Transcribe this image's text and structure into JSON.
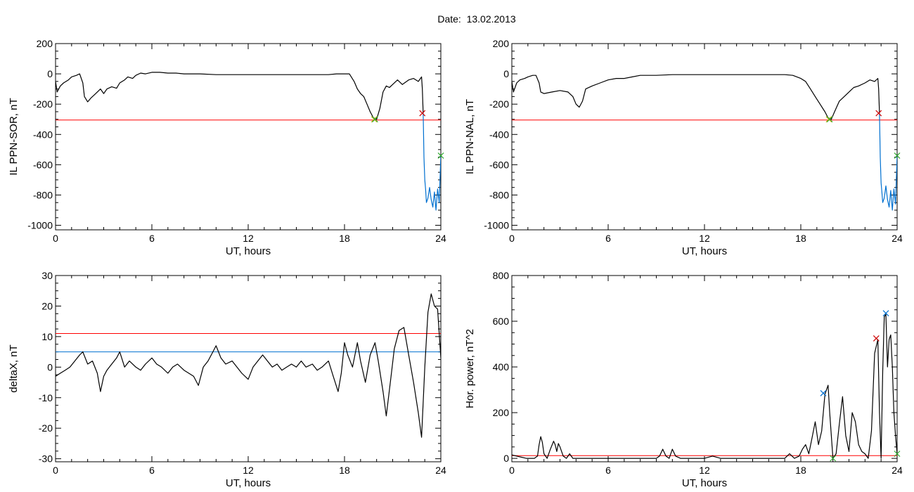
{
  "page_title": "Date:  13.02.2013",
  "chart_data": [
    {
      "type": "line",
      "xlabel": "UT, hours",
      "ylabel": "IL PPN-SOR, nT",
      "xlim": [
        0,
        24
      ],
      "ylim": [
        -1030,
        200
      ],
      "xticks": [
        "0",
        "6",
        "12",
        "18",
        "24"
      ],
      "yticks": [
        "-1000",
        "-800",
        "-600",
        "-400",
        "-200",
        "0",
        "200"
      ],
      "threshold_lines": [
        {
          "y": -305,
          "color": "#ff0000"
        }
      ],
      "series": [
        {
          "color": "#000000",
          "x": [
            0,
            0.1,
            0.3,
            0.5,
            0.8,
            1.0,
            1.3,
            1.5,
            1.7,
            1.8,
            2.0,
            2.2,
            2.4,
            2.6,
            2.8,
            3.0,
            3.2,
            3.5,
            3.8,
            4.0,
            4.3,
            4.5,
            4.8,
            5.0,
            5.3,
            5.6,
            6.0,
            6.5,
            7.0,
            7.5,
            8.0,
            9.0,
            10.0,
            11.0,
            12.0,
            13.0,
            14.0,
            15.0,
            16.0,
            17.0,
            17.5,
            18.0,
            18.3,
            18.6,
            18.8,
            19.0,
            19.2,
            19.4,
            19.6,
            19.8,
            20.0,
            20.2,
            20.4,
            20.6,
            20.8,
            21.0,
            21.3,
            21.6,
            22.0,
            22.3,
            22.6,
            22.8,
            22.85,
            22.9
          ],
          "y": [
            -50,
            -120,
            -80,
            -60,
            -40,
            -20,
            -10,
            0,
            -60,
            -150,
            -185,
            -160,
            -140,
            -120,
            -100,
            -130,
            -100,
            -85,
            -95,
            -60,
            -40,
            -20,
            -30,
            -10,
            5,
            0,
            10,
            10,
            5,
            5,
            0,
            0,
            -5,
            -5,
            -5,
            -5,
            -5,
            -5,
            -5,
            -5,
            0,
            0,
            0,
            -50,
            -100,
            -130,
            -150,
            -200,
            -250,
            -290,
            -300,
            -230,
            -120,
            -80,
            -90,
            -70,
            -40,
            -70,
            -40,
            -30,
            -50,
            -20,
            -100,
            -260
          ]
        },
        {
          "color": "#0070d0",
          "x": [
            22.9,
            22.95,
            23.0,
            23.05,
            23.1,
            23.2,
            23.3,
            23.4,
            23.5,
            23.6,
            23.7,
            23.8,
            23.9,
            24.0
          ],
          "y": [
            -260,
            -550,
            -700,
            -760,
            -850,
            -820,
            -750,
            -830,
            -880,
            -780,
            -900,
            -760,
            -850,
            -540
          ]
        }
      ],
      "markers": [
        {
          "x": 19.85,
          "y": -300,
          "color": "#ccaa00"
        },
        {
          "x": 19.9,
          "y": -300,
          "color": "#33aa33"
        },
        {
          "x": 22.85,
          "y": -260,
          "color": "#cc0000"
        },
        {
          "x": 24.0,
          "y": -540,
          "color": "#33aa33"
        }
      ]
    },
    {
      "type": "line",
      "xlabel": "UT, hours",
      "ylabel": "IL PPN-NAL, nT",
      "xlim": [
        0,
        24
      ],
      "ylim": [
        -1030,
        200
      ],
      "xticks": [
        "0",
        "6",
        "12",
        "18",
        "24"
      ],
      "yticks": [
        "-1000",
        "-800",
        "-600",
        "-400",
        "-200",
        "0",
        "200"
      ],
      "threshold_lines": [
        {
          "y": -305,
          "color": "#ff0000"
        }
      ],
      "series": [
        {
          "color": "#000000",
          "x": [
            0,
            0.1,
            0.3,
            0.5,
            0.8,
            1.0,
            1.3,
            1.5,
            1.7,
            1.8,
            2.0,
            2.5,
            3.0,
            3.5,
            3.8,
            4.0,
            4.2,
            4.4,
            4.6,
            5.0,
            5.5,
            6.0,
            6.5,
            7.0,
            7.5,
            8.0,
            9.0,
            10.0,
            11.0,
            12.0,
            13.0,
            14.0,
            15.0,
            16.0,
            17.0,
            17.5,
            18.0,
            18.3,
            18.6,
            18.9,
            19.2,
            19.5,
            19.7,
            19.9,
            20.1,
            20.4,
            20.7,
            21.0,
            21.3,
            21.6,
            22.0,
            22.3,
            22.6,
            22.8,
            22.85,
            22.9
          ],
          "y": [
            -50,
            -120,
            -60,
            -40,
            -30,
            -20,
            -10,
            -10,
            -60,
            -120,
            -130,
            -120,
            -110,
            -120,
            -150,
            -200,
            -220,
            -180,
            -100,
            -80,
            -60,
            -40,
            -30,
            -30,
            -20,
            -10,
            -10,
            -5,
            -5,
            -5,
            -5,
            -5,
            -5,
            -5,
            -5,
            -10,
            -30,
            -50,
            -100,
            -150,
            -200,
            -250,
            -290,
            -300,
            -250,
            -180,
            -150,
            -120,
            -90,
            -80,
            -60,
            -40,
            -50,
            -30,
            -100,
            -260
          ]
        },
        {
          "color": "#0070d0",
          "x": [
            22.9,
            22.95,
            23.0,
            23.05,
            23.1,
            23.2,
            23.3,
            23.4,
            23.5,
            23.6,
            23.7,
            23.8,
            23.9,
            24.0
          ],
          "y": [
            -260,
            -550,
            -720,
            -780,
            -850,
            -820,
            -740,
            -830,
            -880,
            -770,
            -900,
            -760,
            -860,
            -540
          ]
        }
      ],
      "markers": [
        {
          "x": 19.75,
          "y": -300,
          "color": "#ccaa00"
        },
        {
          "x": 19.8,
          "y": -300,
          "color": "#33aa33"
        },
        {
          "x": 22.85,
          "y": -260,
          "color": "#cc0000"
        },
        {
          "x": 24.0,
          "y": -540,
          "color": "#33aa33"
        }
      ]
    },
    {
      "type": "line",
      "xlabel": "UT, hours",
      "ylabel": "deltaX, nT",
      "xlim": [
        0,
        24
      ],
      "ylim": [
        -31,
        30
      ],
      "xticks": [
        "0",
        "6",
        "12",
        "18",
        "24"
      ],
      "yticks": [
        "-30",
        "-20",
        "-10",
        "0",
        "10",
        "20",
        "30"
      ],
      "threshold_lines": [
        {
          "y": 11,
          "color": "#ff0000"
        },
        {
          "y": 5,
          "color": "#0070d0"
        }
      ],
      "series": [
        {
          "color": "#000000",
          "x": [
            0,
            0.3,
            0.6,
            0.9,
            1.2,
            1.5,
            1.7,
            2.0,
            2.3,
            2.6,
            2.8,
            3.0,
            3.2,
            3.5,
            3.8,
            4.0,
            4.3,
            4.6,
            5.0,
            5.3,
            5.6,
            6.0,
            6.3,
            6.6,
            7.0,
            7.3,
            7.6,
            8.0,
            8.3,
            8.6,
            8.9,
            9.2,
            9.5,
            9.8,
            10.0,
            10.3,
            10.6,
            11.0,
            11.3,
            11.6,
            12.0,
            12.3,
            12.6,
            12.9,
            13.2,
            13.5,
            13.8,
            14.1,
            14.4,
            14.7,
            15.0,
            15.3,
            15.6,
            16.0,
            16.3,
            16.6,
            17.0,
            17.3,
            17.6,
            17.8,
            18.0,
            18.2,
            18.5,
            18.8,
            19.0,
            19.3,
            19.6,
            19.9,
            20.1,
            20.4,
            20.6,
            20.9,
            21.1,
            21.4,
            21.7,
            22.0,
            22.3,
            22.6,
            22.8,
            23.0,
            23.2,
            23.4,
            23.6,
            23.8,
            24.0
          ],
          "y": [
            -3,
            -2,
            -1,
            0,
            2,
            4,
            5,
            1,
            2,
            -2,
            -8,
            -3,
            -1,
            1,
            3,
            5,
            0,
            2,
            0,
            -1,
            1,
            3,
            1,
            0,
            -2,
            0,
            1,
            -1,
            -2,
            -3,
            -6,
            0,
            2,
            5,
            7,
            3,
            1,
            2,
            0,
            -2,
            -4,
            0,
            2,
            4,
            2,
            0,
            1,
            -1,
            0,
            1,
            0,
            2,
            0,
            1,
            -1,
            0,
            2,
            -3,
            -8,
            -2,
            8,
            4,
            0,
            8,
            2,
            -5,
            4,
            8,
            2,
            -8,
            -16,
            -3,
            6,
            12,
            13,
            4,
            -5,
            -15,
            -23,
            0,
            18,
            24,
            20,
            19,
            3
          ]
        }
      ],
      "markers": []
    },
    {
      "type": "line",
      "xlabel": "UT, hours",
      "ylabel": "Hor. power, nT^2",
      "xlim": [
        0,
        24
      ],
      "ylim": [
        -15,
        800
      ],
      "xticks": [
        "0",
        "6",
        "12",
        "18",
        "24"
      ],
      "yticks": [
        "0",
        "200",
        "400",
        "600",
        "800"
      ],
      "threshold_lines": [
        {
          "y": 12,
          "color": "#ff0000"
        }
      ],
      "series": [
        {
          "color": "#000000",
          "x": [
            0,
            0.3,
            0.6,
            0.9,
            1.2,
            1.4,
            1.6,
            1.7,
            1.8,
            1.9,
            2.0,
            2.2,
            2.4,
            2.6,
            2.7,
            2.8,
            2.9,
            3.0,
            3.2,
            3.4,
            3.6,
            3.8,
            4.0,
            4.5,
            5.0,
            5.5,
            6.0,
            6.5,
            7.0,
            7.5,
            8.0,
            8.5,
            9.0,
            9.2,
            9.4,
            9.6,
            9.8,
            10.0,
            10.2,
            10.5,
            11.0,
            11.5,
            12.0,
            12.5,
            13.0,
            13.5,
            14.0,
            14.5,
            15.0,
            15.5,
            16.0,
            16.5,
            17.0,
            17.3,
            17.6,
            17.9,
            18.1,
            18.3,
            18.5,
            18.7,
            18.9,
            19.1,
            19.3,
            19.5,
            19.7,
            19.8,
            20.0,
            20.2,
            20.4,
            20.6,
            20.8,
            21.0,
            21.2,
            21.4,
            21.6,
            21.8,
            22.0,
            22.2,
            22.4,
            22.6,
            22.8,
            22.9,
            23.0,
            23.1,
            23.2,
            23.3,
            23.4,
            23.5,
            23.6,
            23.7,
            23.8,
            23.9,
            24.0
          ],
          "y": [
            15,
            10,
            5,
            0,
            0,
            0,
            10,
            60,
            95,
            70,
            20,
            0,
            40,
            75,
            60,
            30,
            65,
            50,
            10,
            0,
            20,
            0,
            0,
            0,
            0,
            0,
            0,
            0,
            0,
            0,
            0,
            0,
            0,
            10,
            40,
            10,
            0,
            40,
            10,
            0,
            0,
            0,
            0,
            10,
            0,
            0,
            0,
            0,
            0,
            0,
            0,
            0,
            0,
            20,
            0,
            10,
            40,
            60,
            20,
            90,
            160,
            60,
            120,
            280,
            320,
            200,
            0,
            20,
            150,
            270,
            100,
            30,
            200,
            160,
            60,
            30,
            20,
            0,
            120,
            460,
            520,
            200,
            0,
            380,
            620,
            630,
            400,
            520,
            540,
            400,
            200,
            100,
            20
          ]
        }
      ],
      "markers": [
        {
          "x": 19.4,
          "y": 285,
          "color": "#0070d0"
        },
        {
          "x": 20.0,
          "y": 0,
          "color": "#33aa33"
        },
        {
          "x": 22.7,
          "y": 525,
          "color": "#cc0000"
        },
        {
          "x": 23.3,
          "y": 635,
          "color": "#0070d0"
        },
        {
          "x": 24.0,
          "y": 20,
          "color": "#33aa33"
        }
      ]
    }
  ]
}
